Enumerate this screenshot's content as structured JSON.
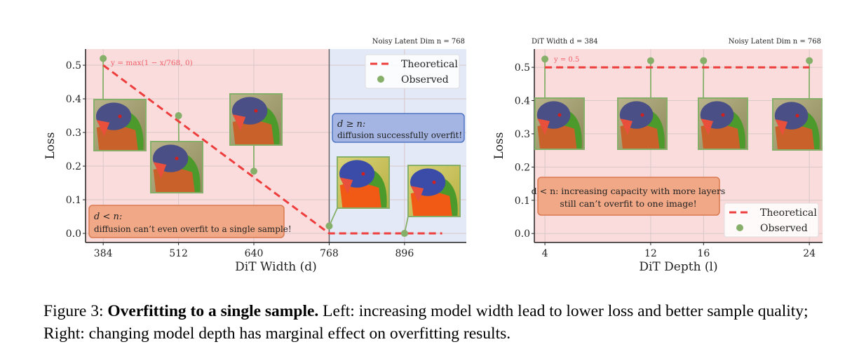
{
  "chart_data": [
    {
      "type": "line+scatter",
      "top_label": "Noisy Latent Dim n = 768",
      "xlabel": "DiT Width (d)",
      "ylabel": "Loss",
      "xlim": [
        354,
        1001
      ],
      "ylim": [
        -0.027,
        0.548
      ],
      "xticks": [
        384,
        512,
        640,
        768,
        896
      ],
      "yticks": [
        0.0,
        0.1,
        0.2,
        0.3,
        0.4,
        0.5
      ],
      "grid": true,
      "regions": [
        {
          "from": 354,
          "to": 768,
          "color": "#fbdcdc"
        },
        {
          "from": 768,
          "to": 1001,
          "color": "#e3e9f7"
        }
      ],
      "divider_x": 768,
      "legend_position": "top-right",
      "series": [
        {
          "name": "Theoretical",
          "style": "dashed",
          "color": "#ee3d3d",
          "x": [
            384,
            768,
            960
          ],
          "y": [
            0.5,
            0.0,
            0.0
          ]
        },
        {
          "name": "Observed",
          "style": "points",
          "color": "#86b06a",
          "x": [
            384,
            512,
            640,
            768,
            896
          ],
          "y": [
            0.52,
            0.35,
            0.185,
            0.022,
            0.0
          ]
        }
      ],
      "formula": "y = max(1 − x/768, 0)",
      "annotations": [
        {
          "title": "d < n:",
          "text": "diffusion can’t even overfit to a single sample!",
          "color": "#f0a887",
          "border": "#d9794f"
        },
        {
          "title": "d ≥ n:",
          "text": "diffusion successfully overfit!",
          "color": "#a4b5e3",
          "border": "#4f74c4"
        }
      ]
    },
    {
      "type": "line+scatter",
      "top_label_left": "DiT Width d = 384",
      "top_label": "Noisy Latent Dim n = 768",
      "xlabel": "DiT Depth (l)",
      "ylabel": "Loss",
      "xlim": [
        3.2,
        25.0
      ],
      "ylim": [
        -0.027,
        0.555
      ],
      "xticks": [
        4,
        12,
        16,
        24
      ],
      "yticks": [
        0.0,
        0.1,
        0.2,
        0.3,
        0.4,
        0.5
      ],
      "grid": true,
      "regions": [
        {
          "from": 3.2,
          "to": 25.0,
          "color": "#fbdcdc"
        }
      ],
      "legend_position": "lower-right",
      "series": [
        {
          "name": "Theoretical",
          "style": "dashed",
          "color": "#ee3d3d",
          "x": [
            4,
            24
          ],
          "y": [
            0.5,
            0.5
          ]
        },
        {
          "name": "Observed",
          "style": "points",
          "color": "#86b06a",
          "x": [
            4,
            12,
            16,
            24
          ],
          "y": [
            0.525,
            0.52,
            0.52,
            0.52
          ]
        }
      ],
      "formula": "y = 0.5",
      "annotations": [
        {
          "title": "d < n:",
          "text": "increasing capacity with more layers",
          "text2": "still can’t overfit to one image!",
          "color": "#f0a887",
          "border": "#d9794f"
        }
      ]
    }
  ],
  "caption": {
    "label": "Figure 3:",
    "title": "Overfitting to a single sample.",
    "text": "Left: increasing model width lead to lower loss and better sample quality; Right: changing model depth has marginal effect on overfitting results."
  }
}
